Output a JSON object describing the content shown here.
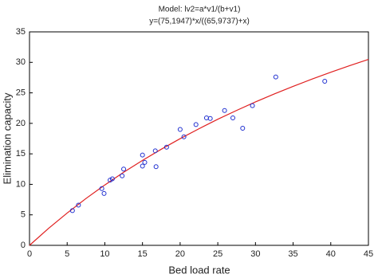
{
  "chart_data": {
    "type": "scatter",
    "title": "Model: lv2=a*v1/(b+v1)",
    "subtitle": "y=(75,1947)*x/((65,9737)+x)",
    "x_label": "Bed load rate",
    "y_label": "Elimination capacity",
    "color": "#1f2fd0",
    "x": [
      5.7,
      6.5,
      9.6,
      9.9,
      10.7,
      11,
      12.3,
      12.5,
      15,
      15,
      15.3,
      16.7,
      16.8,
      18.2,
      20,
      20.5,
      22.1,
      23.5,
      24,
      25.9,
      27,
      28.3,
      29.6,
      32.7,
      39.2
    ],
    "values": [
      5.7,
      6.6,
      9.3,
      8.5,
      10.7,
      10.9,
      11.4,
      12.5,
      13,
      14.8,
      13.6,
      15.5,
      12.9,
      16.1,
      19,
      17.8,
      19.8,
      20.9,
      20.8,
      22.1,
      20.9,
      19.2,
      22.9,
      27.6,
      26.9
    ],
    "fit": {
      "color": "#e02020",
      "x": [
        0,
        2.5,
        5,
        7.5,
        10,
        12.5,
        15,
        17.5,
        20,
        22.5,
        25,
        27.5,
        30,
        32.5,
        35,
        37.5,
        40,
        42.5,
        45
      ],
      "values": [
        0,
        2.75,
        5.3,
        7.68,
        9.9,
        11.98,
        13.93,
        15.76,
        17.49,
        19.12,
        20.67,
        22.12,
        23.51,
        24.82,
        26.06,
        27.25,
        28.38,
        29.46,
        30.49
      ]
    },
    "xlim": [
      0,
      45
    ],
    "xticks": [
      0,
      5,
      10,
      15,
      20,
      25,
      30,
      35,
      40,
      45
    ],
    "ylim": [
      0,
      35
    ],
    "yticks": [
      0,
      5,
      10,
      15,
      20,
      25,
      30,
      35
    ]
  }
}
